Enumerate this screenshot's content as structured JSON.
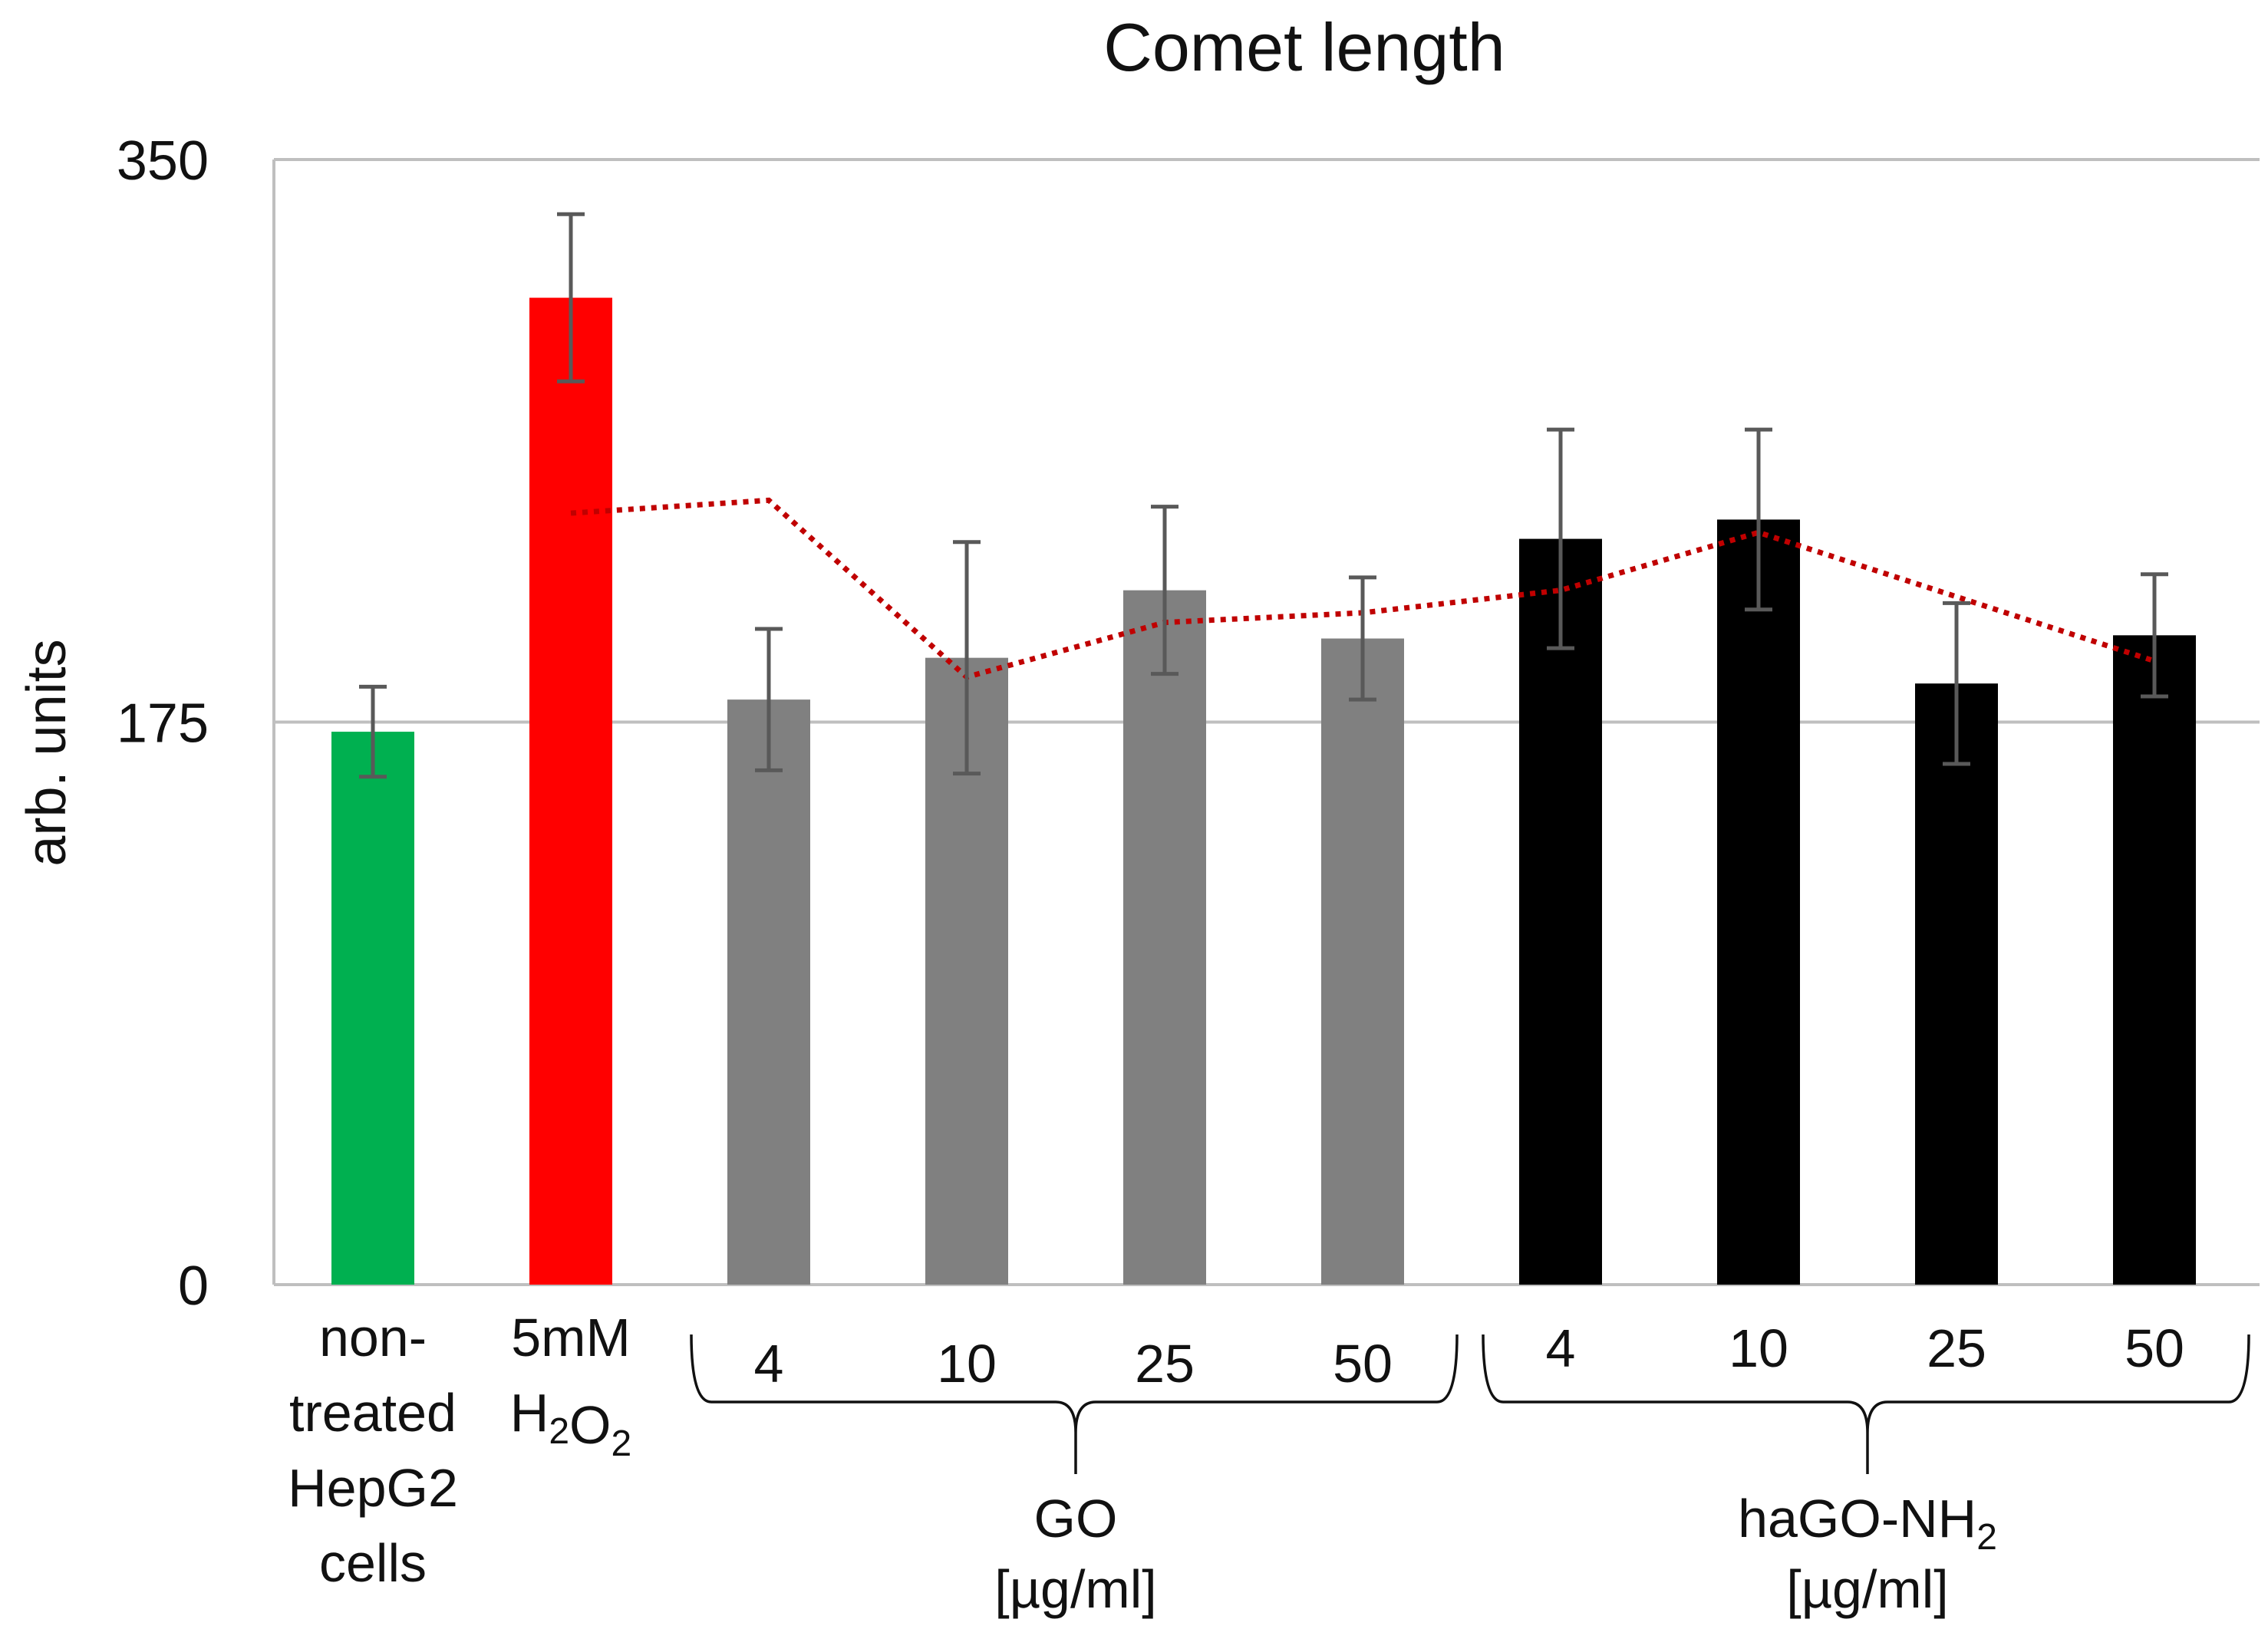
{
  "chart_data": {
    "type": "bar",
    "title": "Comet length",
    "ylabel": "arb. units",
    "xlabel": "",
    "ylim": [
      0,
      350
    ],
    "yticks": [
      "0",
      "175",
      "350"
    ],
    "grid": true,
    "categories": [
      {
        "label_lines": [
          "non-",
          "treated",
          "HepG2",
          "cells"
        ],
        "value": 172,
        "error": 14,
        "color": "#00b050"
      },
      {
        "label_lines": [
          "5mM",
          "H₂O₂"
        ],
        "value": 307,
        "error": 26,
        "color": "#ff0000"
      },
      {
        "label_lines": [
          "4"
        ],
        "value": 182,
        "error": 22,
        "color": "#808080",
        "group": "GO"
      },
      {
        "label_lines": [
          "10"
        ],
        "value": 195,
        "error": 36,
        "color": "#808080",
        "group": "GO"
      },
      {
        "label_lines": [
          "25"
        ],
        "value": 216,
        "error": 26,
        "color": "#808080",
        "group": "GO"
      },
      {
        "label_lines": [
          "50"
        ],
        "value": 201,
        "error": 19,
        "color": "#808080",
        "group": "GO"
      },
      {
        "label_lines": [
          "4"
        ],
        "value": 232,
        "error": 34,
        "color": "#000000",
        "group": "haGO-NH2"
      },
      {
        "label_lines": [
          "10"
        ],
        "value": 238,
        "error": 28,
        "color": "#000000",
        "group": "haGO-NH2"
      },
      {
        "label_lines": [
          "25"
        ],
        "value": 187,
        "error": 25,
        "color": "#000000",
        "group": "haGO-NH2"
      },
      {
        "label_lines": [
          "50"
        ],
        "value": 202,
        "error": 19,
        "color": "#000000",
        "group": "haGO-NH2"
      }
    ],
    "trendline": {
      "style": "dotted",
      "color": "#c00000",
      "points": [
        {
          "index": 1,
          "value": 240
        },
        {
          "index": 2,
          "value": 244
        },
        {
          "index": 3,
          "value": 189
        },
        {
          "index": 4,
          "value": 206
        },
        {
          "index": 5,
          "value": 209
        },
        {
          "index": 6,
          "value": 216
        },
        {
          "index": 7,
          "value": 234
        },
        {
          "index": 8,
          "value": 214
        },
        {
          "index": 9,
          "value": 194
        }
      ]
    },
    "groups": [
      {
        "name": "GO",
        "name_sub": "",
        "unit": "[µg/ml]",
        "from": 2,
        "to": 5
      },
      {
        "name": "haGO-NH",
        "name_sub": "2",
        "unit": "[µg/ml]",
        "from": 6,
        "to": 9
      }
    ]
  }
}
